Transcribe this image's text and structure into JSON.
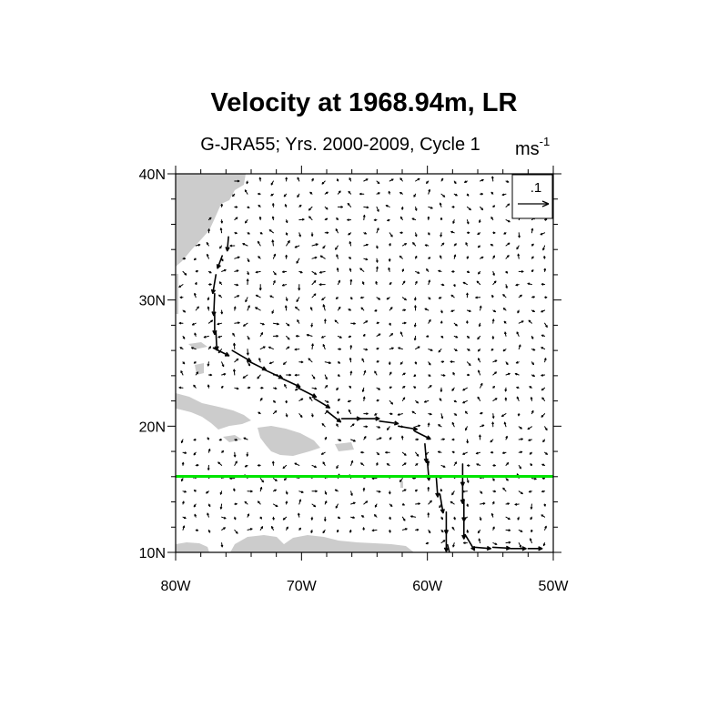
{
  "chart_data": {
    "type": "vector-map",
    "title": "Velocity at 1968.94m, LR",
    "subtitle": "G-JRA55; Yrs. 2000-2009, Cycle 1",
    "units": {
      "base": "ms",
      "exponent": "-1"
    },
    "reference_vector": {
      "label": ".1",
      "magnitude": 0.1
    },
    "x_range": [
      -80,
      -50
    ],
    "y_range": [
      10,
      40
    ],
    "x_ticks": [
      {
        "value": -80,
        "label": "80W"
      },
      {
        "value": -70,
        "label": "70W"
      },
      {
        "value": -60,
        "label": "60W"
      },
      {
        "value": -50,
        "label": "50W"
      }
    ],
    "y_ticks": [
      {
        "value": 40,
        "label": "40N"
      },
      {
        "value": 30,
        "label": "30N"
      },
      {
        "value": 20,
        "label": "20N"
      },
      {
        "value": 10,
        "label": "10N"
      }
    ],
    "section_line": {
      "lat": 16,
      "color": "#00e400"
    },
    "boundary_current_vectors": [
      {
        "lon": -75.8,
        "lat": 35.0,
        "u": -0.004,
        "v": -0.045
      },
      {
        "lon": -76.3,
        "lat": 33.5,
        "u": -0.015,
        "v": -0.04
      },
      {
        "lon": -76.8,
        "lat": 32.0,
        "u": -0.01,
        "v": -0.06
      },
      {
        "lon": -76.9,
        "lat": 30.5,
        "u": -0.003,
        "v": -0.07
      },
      {
        "lon": -76.9,
        "lat": 29.0,
        "u": 0.0,
        "v": -0.07
      },
      {
        "lon": -76.8,
        "lat": 27.5,
        "u": 0.003,
        "v": -0.06
      },
      {
        "lon": -77.0,
        "lat": 26.2,
        "u": 0.05,
        "v": -0.025
      },
      {
        "lon": -75.5,
        "lat": 26.0,
        "u": 0.06,
        "v": -0.035
      },
      {
        "lon": -74.3,
        "lat": 25.2,
        "u": 0.06,
        "v": -0.03
      },
      {
        "lon": -73.0,
        "lat": 24.5,
        "u": 0.06,
        "v": -0.028
      },
      {
        "lon": -71.6,
        "lat": 23.8,
        "u": 0.06,
        "v": -0.028
      },
      {
        "lon": -70.2,
        "lat": 23.0,
        "u": 0.055,
        "v": -0.028
      },
      {
        "lon": -69.0,
        "lat": 22.2,
        "u": 0.05,
        "v": -0.03
      },
      {
        "lon": -68.0,
        "lat": 21.2,
        "u": 0.045,
        "v": -0.035
      },
      {
        "lon": -66.8,
        "lat": 20.6,
        "u": 0.06,
        "v": 0.0
      },
      {
        "lon": -65.3,
        "lat": 20.6,
        "u": 0.06,
        "v": 0.0
      },
      {
        "lon": -63.8,
        "lat": 20.4,
        "u": 0.06,
        "v": -0.008
      },
      {
        "lon": -62.3,
        "lat": 20.0,
        "u": 0.06,
        "v": -0.01
      },
      {
        "lon": -61.0,
        "lat": 19.6,
        "u": 0.05,
        "v": -0.025
      },
      {
        "lon": -60.2,
        "lat": 18.6,
        "u": 0.005,
        "v": -0.06
      },
      {
        "lon": -60.0,
        "lat": 17.2,
        "u": 0.005,
        "v": -0.06
      },
      {
        "lon": -59.3,
        "lat": 16.0,
        "u": 0.005,
        "v": -0.065
      },
      {
        "lon": -59.0,
        "lat": 14.6,
        "u": 0.01,
        "v": -0.06
      },
      {
        "lon": -58.5,
        "lat": 13.2,
        "u": 0.0,
        "v": -0.07
      },
      {
        "lon": -58.5,
        "lat": 11.8,
        "u": 0.0,
        "v": -0.07
      },
      {
        "lon": -58.4,
        "lat": 10.6,
        "u": 0.01,
        "v": -0.04
      },
      {
        "lon": -57.2,
        "lat": 17.0,
        "u": 0.0,
        "v": -0.07
      },
      {
        "lon": -57.2,
        "lat": 15.6,
        "u": 0.0,
        "v": -0.07
      },
      {
        "lon": -57.1,
        "lat": 14.2,
        "u": 0.0,
        "v": -0.07
      },
      {
        "lon": -57.1,
        "lat": 12.8,
        "u": 0.0,
        "v": -0.07
      },
      {
        "lon": -57.0,
        "lat": 11.4,
        "u": 0.03,
        "v": -0.05
      },
      {
        "lon": -56.2,
        "lat": 10.4,
        "u": 0.05,
        "v": -0.004
      },
      {
        "lon": -54.8,
        "lat": 10.4,
        "u": 0.055,
        "v": -0.003
      },
      {
        "lon": -53.4,
        "lat": 10.3,
        "u": 0.05,
        "v": 0.0
      },
      {
        "lon": -52.0,
        "lat": 10.3,
        "u": 0.045,
        "v": 0.0
      }
    ],
    "land_label": "land mask (North America, Cuba, Hispaniola, Puerto Rico, Bahamas, South America)",
    "land_color": "#cccccc"
  }
}
